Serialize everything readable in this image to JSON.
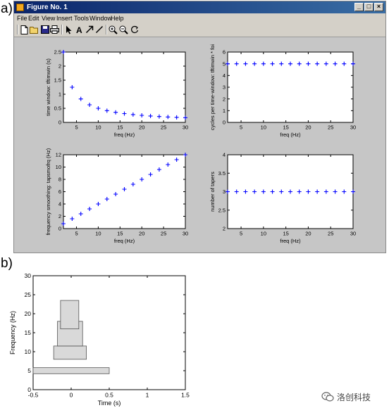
{
  "panel_labels": {
    "a": "a)",
    "b": "b)"
  },
  "window": {
    "title": "Figure No. 1",
    "menu": [
      "File",
      "Edit",
      "View",
      "Insert",
      "Tools",
      "Window",
      "Help"
    ],
    "toolbar_icons": [
      "new-file-icon",
      "open-folder-icon",
      "save-icon",
      "print-icon",
      "select-arrow-icon",
      "insert-text-icon",
      "insert-arrow-icon",
      "insert-line-icon",
      "zoom-in-icon",
      "zoom-out-icon",
      "rotate-icon"
    ],
    "controls": {
      "minimize": "_",
      "maximize": "□",
      "close": "×"
    }
  },
  "chart_data": [
    {
      "id": "a1",
      "type": "scatter",
      "marker": "+",
      "color": "#0000ff",
      "xlabel": "freq (Hz)",
      "ylabel": "time window: tftimwin (s)",
      "xlim": [
        2,
        30
      ],
      "ylim": [
        0,
        2.5
      ],
      "xticks": [
        5,
        10,
        15,
        20,
        25,
        30
      ],
      "yticks": [
        0,
        0.5,
        1,
        1.5,
        2,
        2.5
      ],
      "x": [
        2,
        4,
        6,
        8,
        10,
        12,
        14,
        16,
        18,
        20,
        22,
        24,
        26,
        28,
        30
      ],
      "y": [
        2.5,
        1.25,
        0.8333,
        0.625,
        0.5,
        0.4167,
        0.3571,
        0.3125,
        0.2778,
        0.25,
        0.2273,
        0.2083,
        0.1923,
        0.1786,
        0.1667
      ]
    },
    {
      "id": "a2",
      "type": "scatter",
      "marker": "+",
      "color": "#0000ff",
      "xlabel": "freq (Hz)",
      "ylabel": "cycles per time-window: tftimwin * foi",
      "xlim": [
        2,
        30
      ],
      "ylim": [
        0,
        6
      ],
      "xticks": [
        5,
        10,
        15,
        20,
        25,
        30
      ],
      "yticks": [
        0,
        1,
        2,
        3,
        4,
        5,
        6
      ],
      "x": [
        2,
        4,
        6,
        8,
        10,
        12,
        14,
        16,
        18,
        20,
        22,
        24,
        26,
        28,
        30
      ],
      "y": [
        5,
        5,
        5,
        5,
        5,
        5,
        5,
        5,
        5,
        5,
        5,
        5,
        5,
        5,
        5
      ]
    },
    {
      "id": "a3",
      "type": "scatter",
      "marker": "+",
      "color": "#0000ff",
      "xlabel": "freq (Hz)",
      "ylabel": "frequency smoothing: tapsmofrq (Hz)",
      "xlim": [
        2,
        30
      ],
      "ylim": [
        0,
        12
      ],
      "xticks": [
        5,
        10,
        15,
        20,
        25,
        30
      ],
      "yticks": [
        0,
        2,
        4,
        6,
        8,
        10,
        12
      ],
      "x": [
        2,
        4,
        6,
        8,
        10,
        12,
        14,
        16,
        18,
        20,
        22,
        24,
        26,
        28,
        30
      ],
      "y": [
        0.8,
        1.6,
        2.4,
        3.2,
        4.0,
        4.8,
        5.6,
        6.4,
        7.2,
        8.0,
        8.8,
        9.6,
        10.4,
        11.2,
        12.0
      ]
    },
    {
      "id": "a4",
      "type": "scatter",
      "marker": "+",
      "color": "#0000ff",
      "xlabel": "freq (Hz)",
      "ylabel": "number of tapers",
      "xlim": [
        2,
        30
      ],
      "ylim": [
        2,
        4
      ],
      "xticks": [
        5,
        10,
        15,
        20,
        25,
        30
      ],
      "yticks": [
        2,
        2.5,
        3,
        3.5,
        4
      ],
      "x": [
        2,
        4,
        6,
        8,
        10,
        12,
        14,
        16,
        18,
        20,
        22,
        24,
        26,
        28,
        30
      ],
      "y": [
        3,
        3,
        3,
        3,
        3,
        3,
        3,
        3,
        3,
        3,
        3,
        3,
        3,
        3,
        3
      ]
    },
    {
      "id": "b",
      "type": "rectangles",
      "xlabel": "Time (s)",
      "ylabel": "Frequency (Hz)",
      "xlim": [
        -0.5,
        1.5
      ],
      "ylim": [
        0,
        30
      ],
      "xticks": [
        -0.5,
        0,
        0.5,
        1,
        1.5
      ],
      "yticks": [
        0,
        5,
        10,
        15,
        20,
        25,
        30
      ],
      "fill": "#d9d9d9",
      "rects": [
        {
          "t0": -0.5,
          "t1": 0.5,
          "f0": 4.2,
          "f1": 5.8
        },
        {
          "t0": -0.23,
          "t1": 0.2,
          "f0": 8,
          "f1": 11.5
        },
        {
          "t0": -0.18,
          "t1": 0.15,
          "f0": 11.5,
          "f1": 18
        },
        {
          "t0": -0.14,
          "t1": 0.1,
          "f0": 16,
          "f1": 23.5
        }
      ]
    }
  ],
  "watermark": {
    "text": "洛创科技",
    "icon": "wechat-icon"
  }
}
